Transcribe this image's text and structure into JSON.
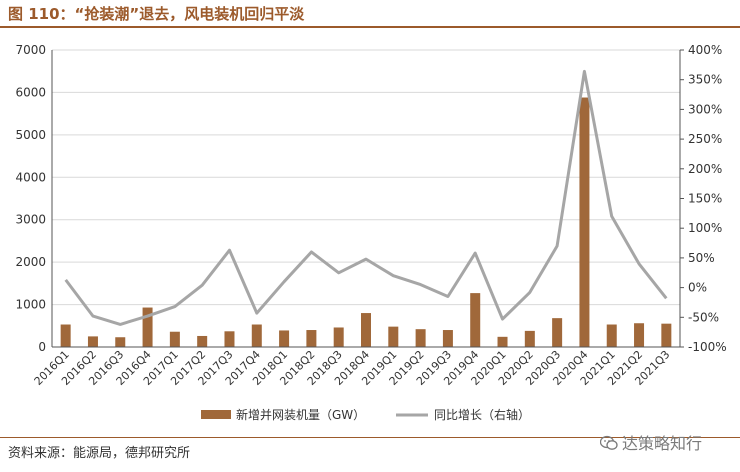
{
  "figure": {
    "title": "图 110：“抢装潮”退去，风电装机回归平淡",
    "source": "资料来源：能源局，德邦研究所",
    "watermark": "达策略知行"
  },
  "chart_data": {
    "type": "bar",
    "categories": [
      "2016Q1",
      "2016Q2",
      "2016Q3",
      "2016Q4",
      "2017Q1",
      "2017Q2",
      "2017Q3",
      "2017Q4",
      "2018Q1",
      "2018Q2",
      "2018Q3",
      "2018Q4",
      "2019Q1",
      "2019Q2",
      "2019Q3",
      "2019Q4",
      "2020Q1",
      "2020Q2",
      "2020Q3",
      "2020Q4",
      "2021Q1",
      "2021Q2",
      "2021Q3"
    ],
    "series": [
      {
        "name": "新增并网装机量（GW）",
        "type": "bar",
        "axis": "left",
        "color": "#a0683a",
        "values": [
          530,
          250,
          230,
          930,
          360,
          260,
          370,
          530,
          390,
          400,
          460,
          800,
          480,
          420,
          400,
          1270,
          240,
          380,
          680,
          5880,
          530,
          560,
          550
        ]
      },
      {
        "name": "同比增长（右轴）",
        "type": "line",
        "axis": "right",
        "color": "#a6a6a6",
        "values": [
          13,
          -48,
          -62,
          -48,
          -32,
          4,
          63,
          -43,
          10,
          60,
          25,
          48,
          20,
          5,
          -15,
          58,
          -53,
          -8,
          70,
          364,
          120,
          40,
          -18
        ]
      }
    ],
    "yleft": {
      "lim": [
        0,
        7000
      ],
      "ticks": [
        0,
        1000,
        2000,
        3000,
        4000,
        5000,
        6000,
        7000
      ]
    },
    "yright": {
      "lim": [
        -100,
        400
      ],
      "ticks": [
        "-100%",
        "-50%",
        "0%",
        "50%",
        "100%",
        "150%",
        "200%",
        "250%",
        "300%",
        "350%",
        "400%"
      ]
    },
    "grid": "horizontal",
    "legend": "bottom"
  }
}
